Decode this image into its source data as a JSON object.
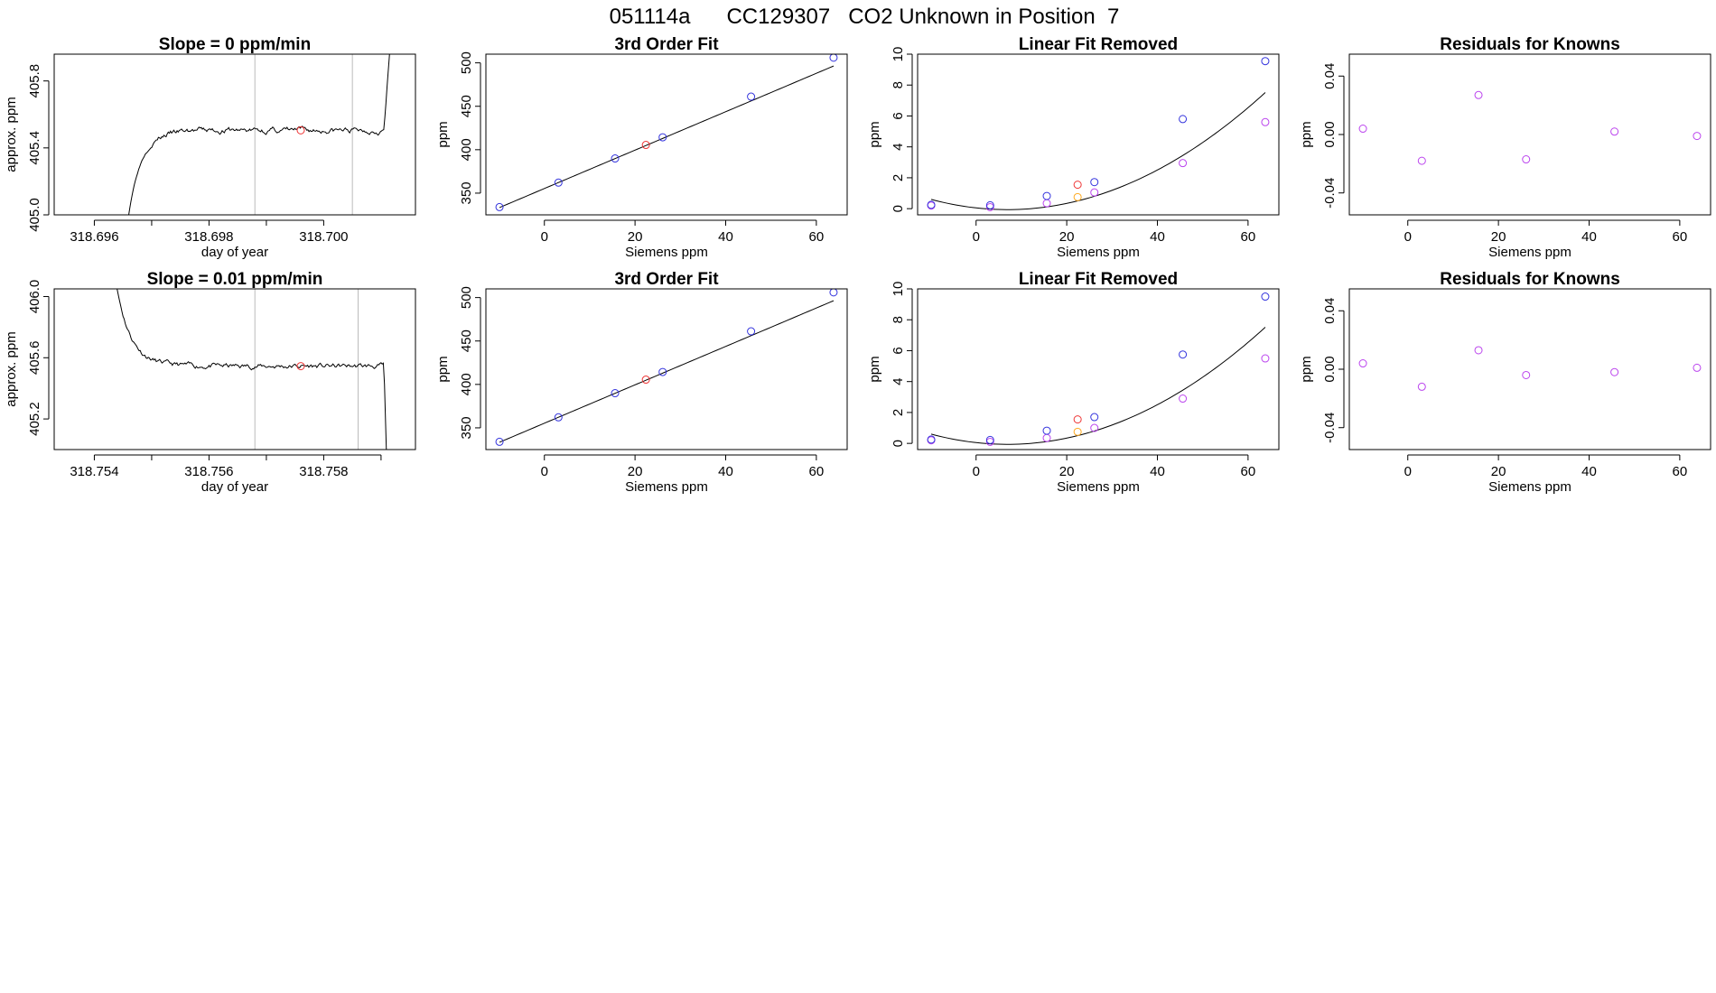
{
  "header": {
    "title": "051114a      CC129307   CO2 Unknown in Position  7"
  },
  "colors": {
    "known": "#3333dd",
    "unknown": "#ee3333",
    "residual": "#bb44ee",
    "orange": "#ffaa22",
    "line": "#000000",
    "vline": "#bbbbbb"
  },
  "chart_data": [
    {
      "id": "r1-trace",
      "type": "line",
      "title": "Slope =  0  ppm/min",
      "xlabel": "day of year",
      "ylabel": "approx. ppm",
      "xlim": [
        318.6953,
        318.7016
      ],
      "ylim": [
        405.0,
        405.96
      ],
      "xticks": [
        318.696,
        318.697,
        318.698,
        318.699,
        318.7
      ],
      "xticklabels": [
        "318.696",
        "",
        "318.698",
        "",
        "318.700"
      ],
      "yticks": [
        405.0,
        405.4,
        405.8
      ],
      "yticklabels": [
        "405.0",
        "405.4",
        "405.8"
      ],
      "vlines": [
        318.6988,
        318.7005
      ],
      "trace": {
        "start": 318.6966,
        "end": 318.7012,
        "baseline": 405.0,
        "plateau": 405.505,
        "riseTau": 0.00022,
        "noise": 0.012,
        "exitStart": 318.70105,
        "exitTop": 406.2,
        "seed": 3
      },
      "unknown_point": {
        "x": 318.6996,
        "y": 405.505
      }
    },
    {
      "id": "r1-fit",
      "type": "scatter+line",
      "title": "3rd Order Fit",
      "xlabel": "Siemens ppm",
      "ylabel": "ppm",
      "xlim": [
        -12.9,
        66.8
      ],
      "ylim": [
        325.0,
        510.0
      ],
      "xticks": [
        0,
        20,
        40,
        60
      ],
      "xticklabels": [
        "0",
        "20",
        "40",
        "60"
      ],
      "yticks": [
        350,
        400,
        450,
        500
      ],
      "yticklabels": [
        "350",
        "400",
        "450",
        "500"
      ],
      "knowns": [
        [
          -9.9,
          333.9
        ],
        [
          3.1,
          362.1
        ],
        [
          15.6,
          389.9
        ],
        [
          26.1,
          414.3
        ],
        [
          45.6,
          461.1
        ],
        [
          63.8,
          506.0
        ]
      ],
      "unknown": [
        [
          22.4,
          405.5
        ]
      ],
      "curve": {
        "coeffs": [
          355.3,
          2.2108,
          0.0,
          0.0
        ],
        "from": -9.9,
        "to": 63.8
      }
    },
    {
      "id": "r1-linrem",
      "type": "scatter+line",
      "title": "Linear Fit Removed",
      "xlabel": "Siemens ppm",
      "ylabel": "ppm",
      "xlim": [
        -12.9,
        66.8
      ],
      "ylim": [
        -0.4,
        10.0
      ],
      "xticks": [
        0,
        20,
        40,
        60
      ],
      "xticklabels": [
        "0",
        "20",
        "40",
        "60"
      ],
      "yticks": [
        0,
        2,
        4,
        6,
        8,
        10
      ],
      "yticklabels": [
        "0",
        "2",
        "4",
        "6",
        "8",
        "10"
      ],
      "knowns": [
        [
          -9.9,
          0.25
        ],
        [
          3.1,
          0.22
        ],
        [
          15.6,
          0.82
        ],
        [
          26.1,
          1.72
        ],
        [
          45.6,
          5.8
        ],
        [
          63.8,
          9.55
        ]
      ],
      "unknown": [
        [
          22.4,
          1.55
        ]
      ],
      "purple": [
        [
          -9.9,
          0.2
        ],
        [
          3.1,
          0.1
        ],
        [
          15.6,
          0.35
        ],
        [
          26.1,
          1.05
        ],
        [
          45.6,
          2.95
        ],
        [
          63.8,
          5.6
        ]
      ],
      "orange": [
        [
          22.4,
          0.75
        ]
      ],
      "curve": {
        "coeffs": [
          0.0497,
          -0.0323,
          0.00234,
          0.0
        ],
        "from": -9.9,
        "to": 63.8
      }
    },
    {
      "id": "r1-resid",
      "type": "scatter",
      "title": "Residuals for Knowns",
      "xlabel": "Siemens ppm",
      "ylabel": "ppm",
      "xlim": [
        -12.9,
        66.8
      ],
      "ylim": [
        -0.055,
        0.055
      ],
      "xticks": [
        0,
        20,
        40,
        60
      ],
      "xticklabels": [
        "0",
        "20",
        "40",
        "60"
      ],
      "yticks": [
        -0.04,
        0.0,
        0.04
      ],
      "yticklabels": [
        "-0.04",
        "0.00",
        "0.04"
      ],
      "purple": [
        [
          -9.9,
          0.004
        ],
        [
          3.1,
          -0.018
        ],
        [
          15.6,
          0.027
        ],
        [
          26.1,
          -0.017
        ],
        [
          45.6,
          0.002
        ],
        [
          63.8,
          -0.001
        ]
      ]
    },
    {
      "id": "r2-trace",
      "type": "line",
      "title": "Slope =  0.01  ppm/min",
      "xlabel": "day of year",
      "ylabel": "approx. ppm",
      "xlim": [
        318.7533,
        318.7596
      ],
      "ylim": [
        405.0,
        406.05
      ],
      "xticks": [
        318.754,
        318.755,
        318.756,
        318.757,
        318.758,
        318.759
      ],
      "xticklabels": [
        "318.754",
        "",
        "318.756",
        "",
        "318.758",
        ""
      ],
      "yticks": [
        405.2,
        405.6,
        406.0
      ],
      "yticklabels": [
        "405.2",
        "405.6",
        "406.0"
      ],
      "vlines": [
        318.7568,
        318.7586
      ],
      "trace": {
        "start": 318.7543,
        "end": 318.7591,
        "plateau": 405.545,
        "decayFrom": 406.3,
        "decayTau": 0.00025,
        "noise": 0.012,
        "exitStart": 318.75905,
        "exitBottom": 404.9,
        "seed": 11
      },
      "unknown_point": {
        "x": 318.7576,
        "y": 405.545
      }
    },
    {
      "id": "r2-fit",
      "type": "scatter+line",
      "title": "3rd Order Fit",
      "xlabel": "Siemens ppm",
      "ylabel": "ppm",
      "xlim": [
        -12.9,
        66.8
      ],
      "ylim": [
        325.0,
        510.0
      ],
      "xticks": [
        0,
        20,
        40,
        60
      ],
      "xticklabels": [
        "0",
        "20",
        "40",
        "60"
      ],
      "yticks": [
        350,
        400,
        450,
        500
      ],
      "yticklabels": [
        "350",
        "400",
        "450",
        "500"
      ],
      "knowns": [
        [
          -9.9,
          333.9
        ],
        [
          3.1,
          362.1
        ],
        [
          15.6,
          389.9
        ],
        [
          26.1,
          414.3
        ],
        [
          45.6,
          461.1
        ],
        [
          63.8,
          506.0
        ]
      ],
      "unknown": [
        [
          22.4,
          405.5
        ]
      ],
      "curve": {
        "coeffs": [
          355.3,
          2.2108,
          0.0,
          0.0
        ],
        "from": -9.9,
        "to": 63.8
      }
    },
    {
      "id": "r2-linrem",
      "type": "scatter+line",
      "title": "Linear Fit Removed",
      "xlabel": "Siemens ppm",
      "ylabel": "ppm",
      "xlim": [
        -12.9,
        66.8
      ],
      "ylim": [
        -0.4,
        10.0
      ],
      "xticks": [
        0,
        20,
        40,
        60
      ],
      "xticklabels": [
        "0",
        "20",
        "40",
        "60"
      ],
      "yticks": [
        0,
        2,
        4,
        6,
        8,
        10
      ],
      "yticklabels": [
        "0",
        "2",
        "4",
        "6",
        "8",
        "10"
      ],
      "knowns": [
        [
          -9.9,
          0.25
        ],
        [
          3.1,
          0.22
        ],
        [
          15.6,
          0.82
        ],
        [
          26.1,
          1.7
        ],
        [
          45.6,
          5.75
        ],
        [
          63.8,
          9.5
        ]
      ],
      "unknown": [
        [
          22.4,
          1.55
        ]
      ],
      "purple": [
        [
          -9.9,
          0.2
        ],
        [
          3.1,
          0.1
        ],
        [
          15.6,
          0.35
        ],
        [
          26.1,
          1.0
        ],
        [
          45.6,
          2.9
        ],
        [
          63.8,
          5.5
        ]
      ],
      "orange": [
        [
          22.4,
          0.75
        ]
      ],
      "curve": {
        "coeffs": [
          0.0497,
          -0.0323,
          0.00234,
          0.0
        ],
        "from": -9.9,
        "to": 63.8
      }
    },
    {
      "id": "r2-resid",
      "type": "scatter",
      "title": "Residuals for Knowns",
      "xlabel": "Siemens ppm",
      "ylabel": "ppm",
      "xlim": [
        -12.9,
        66.8
      ],
      "ylim": [
        -0.055,
        0.055
      ],
      "xticks": [
        0,
        20,
        40,
        60
      ],
      "xticklabels": [
        "0",
        "20",
        "40",
        "60"
      ],
      "yticks": [
        -0.04,
        0.0,
        0.04
      ],
      "yticklabels": [
        "-0.04",
        "0.00",
        "0.04"
      ],
      "purple": [
        [
          -9.9,
          0.004
        ],
        [
          3.1,
          -0.012
        ],
        [
          15.6,
          0.013
        ],
        [
          26.1,
          -0.004
        ],
        [
          45.6,
          -0.002
        ],
        [
          63.8,
          0.001
        ]
      ]
    }
  ]
}
